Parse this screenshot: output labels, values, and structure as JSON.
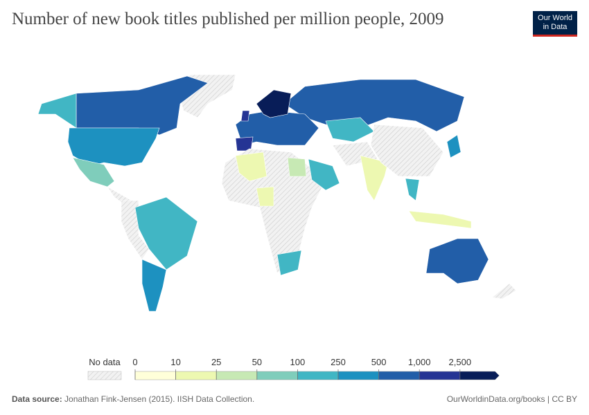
{
  "header": {
    "title": "Number of new book titles published per million people, 2009",
    "logo": [
      "Our World",
      "in Data"
    ]
  },
  "legend": {
    "no_data_label": "No data",
    "ticks": [
      0,
      10,
      25,
      50,
      100,
      250,
      500,
      {
        "value": 1000,
        "label": "1,000"
      },
      {
        "value": 2500,
        "label": "2,500"
      }
    ],
    "colors": [
      "#ffffd9",
      "#edf8b1",
      "#c7e9b4",
      "#7fcdbb",
      "#41b6c4",
      "#1d91c0",
      "#225ea8",
      "#253494",
      "#081d58"
    ]
  },
  "footer": {
    "source_label": "Data source:",
    "source": "Jonathan Fink-Jensen (2015). IISH Data Collection.",
    "link": "OurWorldinData.org/books | CC BY"
  }
}
